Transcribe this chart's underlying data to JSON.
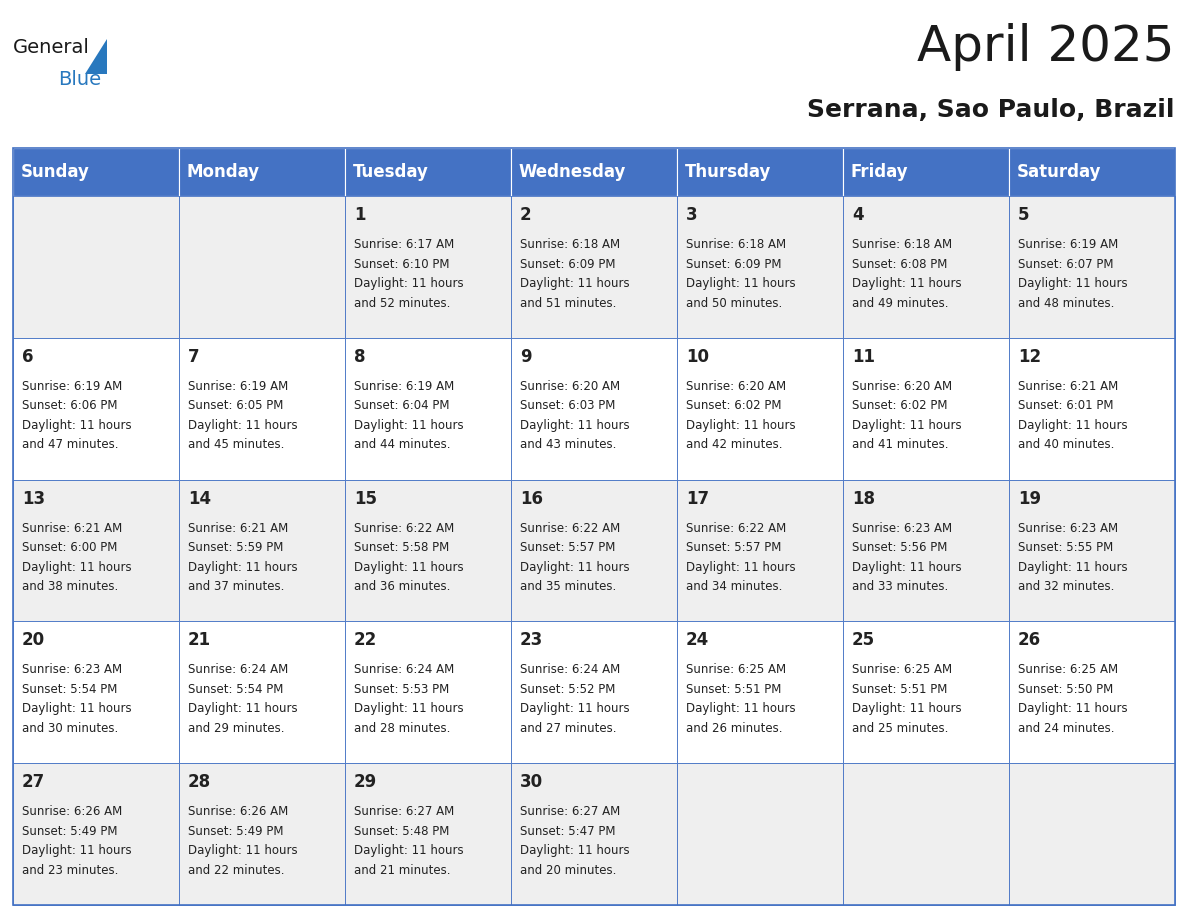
{
  "title": "April 2025",
  "subtitle": "Serrana, Sao Paulo, Brazil",
  "header_bg": "#4472C4",
  "header_text_color": "#FFFFFF",
  "cell_bg_odd": "#EFEFEF",
  "cell_bg_even": "#FFFFFF",
  "border_color": "#4472C4",
  "text_color": "#1a1a1a",
  "cell_text_color": "#222222",
  "days_of_week": [
    "Sunday",
    "Monday",
    "Tuesday",
    "Wednesday",
    "Thursday",
    "Friday",
    "Saturday"
  ],
  "logo_general_color": "#1a1a1a",
  "logo_blue_color": "#2878be",
  "logo_triangle_color": "#2878be",
  "title_fontsize": 36,
  "subtitle_fontsize": 18,
  "header_fontsize": 12,
  "day_number_fontsize": 12,
  "cell_text_fontsize": 8.5,
  "calendar_data": [
    [
      {
        "day": "",
        "sunrise": "",
        "sunset": "",
        "daylight": ""
      },
      {
        "day": "",
        "sunrise": "",
        "sunset": "",
        "daylight": ""
      },
      {
        "day": "1",
        "sunrise": "6:17 AM",
        "sunset": "6:10 PM",
        "daylight": "11 hours and 52 minutes."
      },
      {
        "day": "2",
        "sunrise": "6:18 AM",
        "sunset": "6:09 PM",
        "daylight": "11 hours and 51 minutes."
      },
      {
        "day": "3",
        "sunrise": "6:18 AM",
        "sunset": "6:09 PM",
        "daylight": "11 hours and 50 minutes."
      },
      {
        "day": "4",
        "sunrise": "6:18 AM",
        "sunset": "6:08 PM",
        "daylight": "11 hours and 49 minutes."
      },
      {
        "day": "5",
        "sunrise": "6:19 AM",
        "sunset": "6:07 PM",
        "daylight": "11 hours and 48 minutes."
      }
    ],
    [
      {
        "day": "6",
        "sunrise": "6:19 AM",
        "sunset": "6:06 PM",
        "daylight": "11 hours and 47 minutes."
      },
      {
        "day": "7",
        "sunrise": "6:19 AM",
        "sunset": "6:05 PM",
        "daylight": "11 hours and 45 minutes."
      },
      {
        "day": "8",
        "sunrise": "6:19 AM",
        "sunset": "6:04 PM",
        "daylight": "11 hours and 44 minutes."
      },
      {
        "day": "9",
        "sunrise": "6:20 AM",
        "sunset": "6:03 PM",
        "daylight": "11 hours and 43 minutes."
      },
      {
        "day": "10",
        "sunrise": "6:20 AM",
        "sunset": "6:02 PM",
        "daylight": "11 hours and 42 minutes."
      },
      {
        "day": "11",
        "sunrise": "6:20 AM",
        "sunset": "6:02 PM",
        "daylight": "11 hours and 41 minutes."
      },
      {
        "day": "12",
        "sunrise": "6:21 AM",
        "sunset": "6:01 PM",
        "daylight": "11 hours and 40 minutes."
      }
    ],
    [
      {
        "day": "13",
        "sunrise": "6:21 AM",
        "sunset": "6:00 PM",
        "daylight": "11 hours and 38 minutes."
      },
      {
        "day": "14",
        "sunrise": "6:21 AM",
        "sunset": "5:59 PM",
        "daylight": "11 hours and 37 minutes."
      },
      {
        "day": "15",
        "sunrise": "6:22 AM",
        "sunset": "5:58 PM",
        "daylight": "11 hours and 36 minutes."
      },
      {
        "day": "16",
        "sunrise": "6:22 AM",
        "sunset": "5:57 PM",
        "daylight": "11 hours and 35 minutes."
      },
      {
        "day": "17",
        "sunrise": "6:22 AM",
        "sunset": "5:57 PM",
        "daylight": "11 hours and 34 minutes."
      },
      {
        "day": "18",
        "sunrise": "6:23 AM",
        "sunset": "5:56 PM",
        "daylight": "11 hours and 33 minutes."
      },
      {
        "day": "19",
        "sunrise": "6:23 AM",
        "sunset": "5:55 PM",
        "daylight": "11 hours and 32 minutes."
      }
    ],
    [
      {
        "day": "20",
        "sunrise": "6:23 AM",
        "sunset": "5:54 PM",
        "daylight": "11 hours and 30 minutes."
      },
      {
        "day": "21",
        "sunrise": "6:24 AM",
        "sunset": "5:54 PM",
        "daylight": "11 hours and 29 minutes."
      },
      {
        "day": "22",
        "sunrise": "6:24 AM",
        "sunset": "5:53 PM",
        "daylight": "11 hours and 28 minutes."
      },
      {
        "day": "23",
        "sunrise": "6:24 AM",
        "sunset": "5:52 PM",
        "daylight": "11 hours and 27 minutes."
      },
      {
        "day": "24",
        "sunrise": "6:25 AM",
        "sunset": "5:51 PM",
        "daylight": "11 hours and 26 minutes."
      },
      {
        "day": "25",
        "sunrise": "6:25 AM",
        "sunset": "5:51 PM",
        "daylight": "11 hours and 25 minutes."
      },
      {
        "day": "26",
        "sunrise": "6:25 AM",
        "sunset": "5:50 PM",
        "daylight": "11 hours and 24 minutes."
      }
    ],
    [
      {
        "day": "27",
        "sunrise": "6:26 AM",
        "sunset": "5:49 PM",
        "daylight": "11 hours and 23 minutes."
      },
      {
        "day": "28",
        "sunrise": "6:26 AM",
        "sunset": "5:49 PM",
        "daylight": "11 hours and 22 minutes."
      },
      {
        "day": "29",
        "sunrise": "6:27 AM",
        "sunset": "5:48 PM",
        "daylight": "11 hours and 21 minutes."
      },
      {
        "day": "30",
        "sunrise": "6:27 AM",
        "sunset": "5:47 PM",
        "daylight": "11 hours and 20 minutes."
      },
      {
        "day": "",
        "sunrise": "",
        "sunset": "",
        "daylight": ""
      },
      {
        "day": "",
        "sunrise": "",
        "sunset": "",
        "daylight": ""
      },
      {
        "day": "",
        "sunrise": "",
        "sunset": "",
        "daylight": ""
      }
    ]
  ]
}
